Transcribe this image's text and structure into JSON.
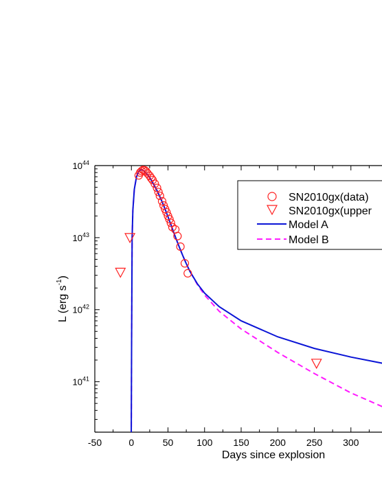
{
  "chart_data": {
    "type": "line",
    "xlabel": "Days since explosion",
    "ylabel_main": "L (erg s",
    "ylabel_sup": "-1",
    "ylabel_close": ")",
    "y_scale": "log",
    "xlim": [
      -50,
      350
    ],
    "ylim_log10": [
      40.3,
      44
    ],
    "x_ticks": [
      -50,
      0,
      50,
      100,
      150,
      200,
      250,
      300
    ],
    "y_ticks": [
      {
        "base": "10",
        "exp": "44",
        "value": 1e+44
      },
      {
        "base": "10",
        "exp": "43",
        "value": 1e+43
      },
      {
        "base": "10",
        "exp": "42",
        "value": 1e+42
      },
      {
        "base": "10",
        "exp": "41",
        "value": 1e+41
      }
    ],
    "legend_position": "top-right",
    "colors": {
      "data_marker": "#ff2020",
      "model_a": "#0a14d6",
      "model_b": "#ff1aff"
    },
    "series": [
      {
        "name": "SN2010gx(data)",
        "kind": "scatter",
        "marker": "circle",
        "points": [
          [
            10,
            7.3e+43
          ],
          [
            12,
            8e+43
          ],
          [
            14,
            8.4e+43
          ],
          [
            16,
            8.7e+43
          ],
          [
            18,
            8.6e+43
          ],
          [
            20,
            8.3e+43
          ],
          [
            22,
            7.8e+43
          ],
          [
            25,
            7.2e+43
          ],
          [
            27,
            6.7e+43
          ],
          [
            29,
            6.3e+43
          ],
          [
            32,
            5.6e+43
          ],
          [
            35,
            4.9e+43
          ],
          [
            37,
            4.3e+43
          ],
          [
            39,
            3.8e+43
          ],
          [
            42,
            3.2e+43
          ],
          [
            44,
            2.8e+43
          ],
          [
            46,
            2.5e+43
          ],
          [
            48,
            2.25e+43
          ],
          [
            50,
            2e+43
          ],
          [
            52,
            1.8e+43
          ],
          [
            54,
            1.6e+43
          ],
          [
            56,
            1.4e+43
          ],
          [
            60,
            1.3e+43
          ],
          [
            63,
            1.05e+43
          ],
          [
            67,
            7.5e+42
          ],
          [
            73,
            4.4e+42
          ],
          [
            77,
            3.2e+42
          ]
        ]
      },
      {
        "name": "SN2010gx(upper",
        "kind": "scatter",
        "marker": "triangle-down",
        "points": [
          [
            -15,
            3.3e+42
          ],
          [
            -2,
            1e+43
          ],
          [
            253,
            1.8e+41
          ]
        ]
      },
      {
        "name": "Model A",
        "kind": "line",
        "dash": "solid",
        "points": [
          [
            -0.3,
            1e+40
          ],
          [
            0.3,
            4e+41
          ],
          [
            1,
            1e+43
          ],
          [
            2,
            2.4e+43
          ],
          [
            4,
            4.7e+43
          ],
          [
            7,
            7e+43
          ],
          [
            10,
            8.3e+43
          ],
          [
            13,
            8.8e+43
          ],
          [
            16,
            8.6e+43
          ],
          [
            20,
            7.9e+43
          ],
          [
            25,
            6.8e+43
          ],
          [
            30,
            5.6e+43
          ],
          [
            35,
            4.5e+43
          ],
          [
            40,
            3.5e+43
          ],
          [
            45,
            2.65e+43
          ],
          [
            50,
            1.95e+43
          ],
          [
            55,
            1.42e+43
          ],
          [
            60,
            1.03e+43
          ],
          [
            65,
            7.6e+42
          ],
          [
            70,
            5.7e+42
          ],
          [
            75,
            4.35e+42
          ],
          [
            80,
            3.4e+42
          ],
          [
            90,
            2.3e+42
          ],
          [
            100,
            1.7e+42
          ],
          [
            120,
            1.1e+42
          ],
          [
            150,
            7e+41
          ],
          [
            200,
            4.2e+41
          ],
          [
            250,
            2.9e+41
          ],
          [
            300,
            2.2e+41
          ],
          [
            350,
            1.75e+41
          ]
        ]
      },
      {
        "name": "Model B",
        "kind": "line",
        "dash": "dashed",
        "points": [
          [
            -0.3,
            1e+40
          ],
          [
            0.3,
            4e+41
          ],
          [
            1,
            1e+43
          ],
          [
            2,
            2.4e+43
          ],
          [
            4,
            4.7e+43
          ],
          [
            7,
            7e+43
          ],
          [
            10,
            8.3e+43
          ],
          [
            13,
            8.8e+43
          ],
          [
            16,
            8.6e+43
          ],
          [
            20,
            7.9e+43
          ],
          [
            25,
            6.8e+43
          ],
          [
            30,
            5.6e+43
          ],
          [
            35,
            4.5e+43
          ],
          [
            40,
            3.5e+43
          ],
          [
            45,
            2.65e+43
          ],
          [
            50,
            1.95e+43
          ],
          [
            55,
            1.42e+43
          ],
          [
            60,
            1.03e+43
          ],
          [
            65,
            7.6e+42
          ],
          [
            70,
            5.7e+42
          ],
          [
            75,
            4.35e+42
          ],
          [
            80,
            3.4e+42
          ],
          [
            90,
            2.25e+42
          ],
          [
            100,
            1.6e+42
          ],
          [
            120,
            9.5e+41
          ],
          [
            150,
            5.4e+41
          ],
          [
            200,
            2.55e+41
          ],
          [
            250,
            1.3e+41
          ],
          [
            300,
            7e+40
          ],
          [
            350,
            4.2e+40
          ]
        ]
      }
    ]
  }
}
